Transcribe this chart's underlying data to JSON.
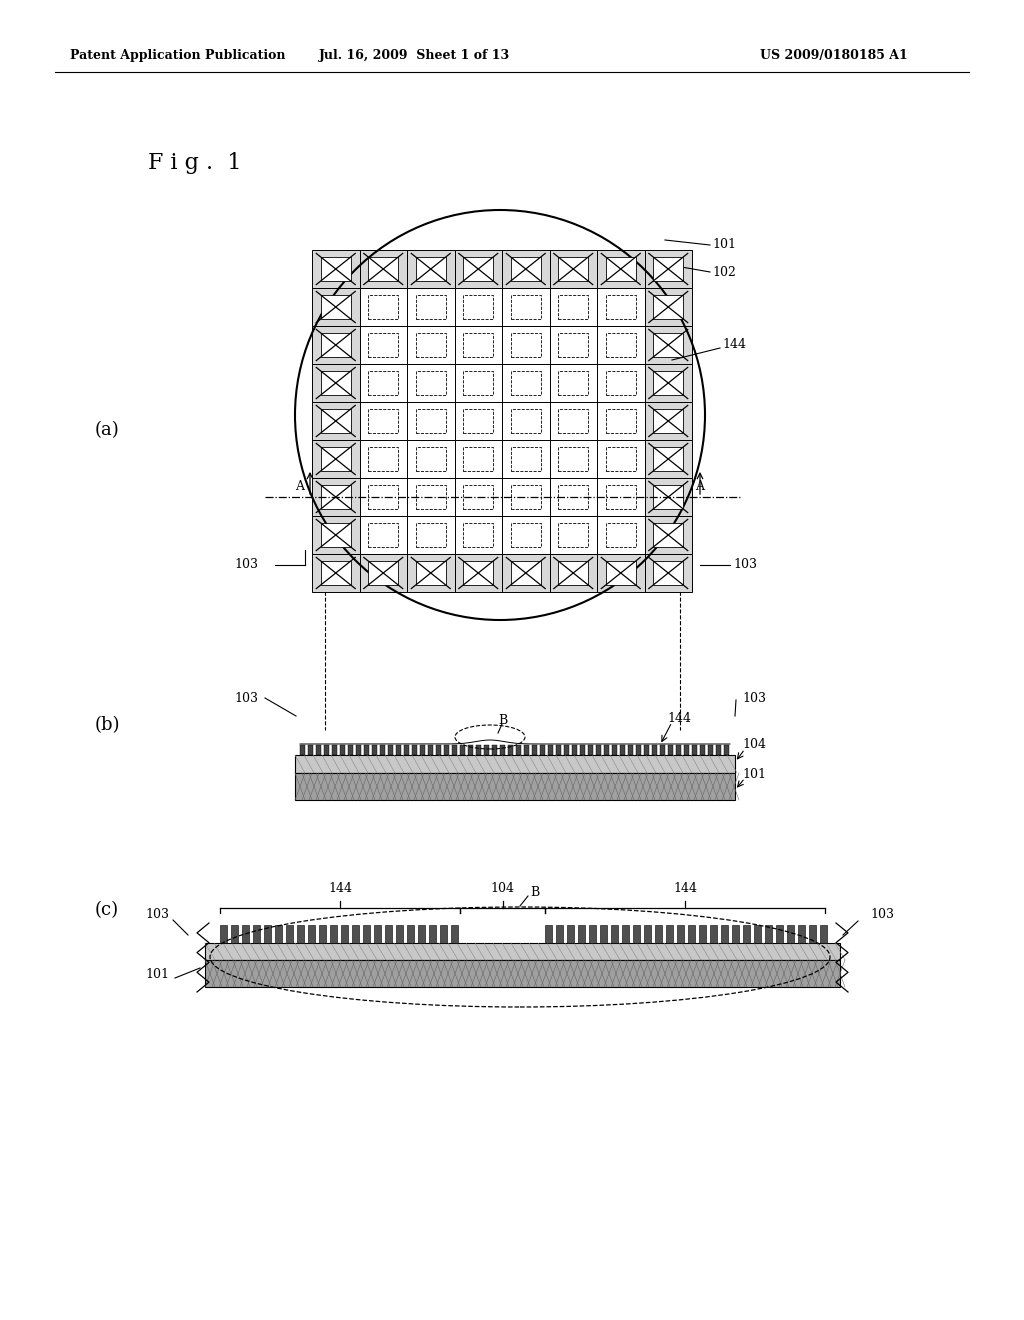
{
  "bg_color": "#ffffff",
  "header_left": "Patent Application Publication",
  "header_mid": "Jul. 16, 2009  Sheet 1 of 13",
  "header_right": "US 2009/0180185 A1",
  "fig_label": "F i g .  1"
}
